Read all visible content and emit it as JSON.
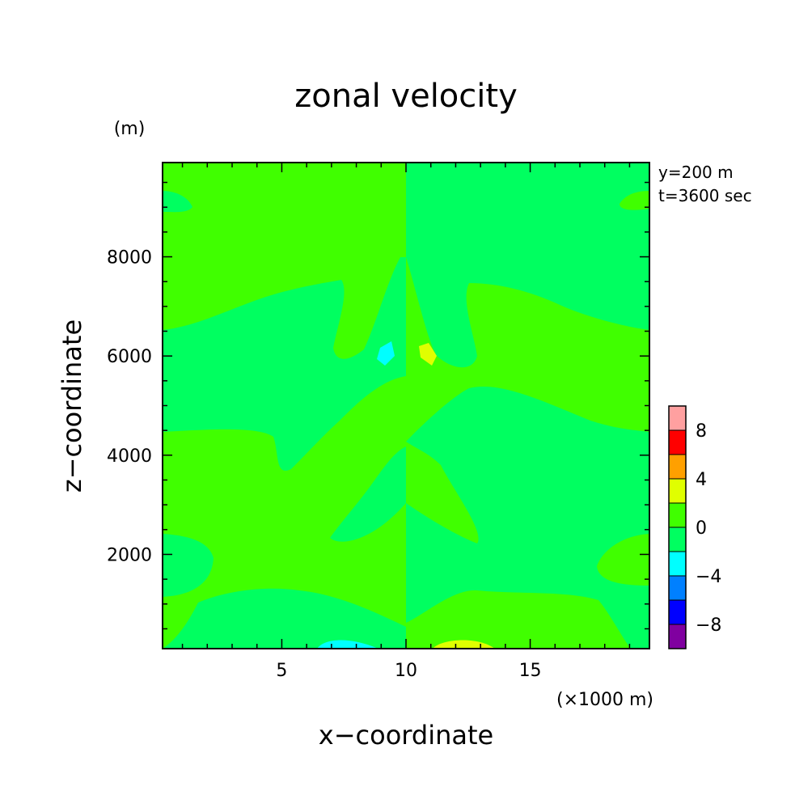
{
  "chart_data": {
    "type": "heatmap",
    "title": "zonal velocity",
    "xlabel": "x−coordinate",
    "ylabel": "z−coordinate",
    "x_unit": "(×1000 m)",
    "y_unit": "(m)",
    "annotations": [
      "y=200 m",
      "t=3600 sec"
    ],
    "xlim": [
      0.2,
      19.8
    ],
    "ylim": [
      100,
      9900
    ],
    "x_ticks": [
      5,
      10,
      15
    ],
    "y_ticks": [
      2000,
      4000,
      6000,
      8000
    ],
    "colorbar": {
      "levels": [
        -10,
        -8,
        -6,
        -4,
        -2,
        0,
        2,
        4,
        6,
        8,
        10
      ],
      "tick_labels": [
        "−8",
        "−4",
        "0",
        "4",
        "8"
      ],
      "tick_values": [
        -8,
        -4,
        0,
        4,
        8
      ],
      "colors": [
        "#8000a0",
        "#0000ff",
        "#0080ff",
        "#00ffff",
        "#00ff60",
        "#40ff00",
        "#e0ff00",
        "#ffa000",
        "#ff0000",
        "#ffa0a0"
      ]
    },
    "colors": {
      "background_band": "#40ff00",
      "band_0_to_neg2": "#00ff60",
      "band_neg4_to_neg2": "#00ffff",
      "band_2_to_4": "#e0ff00"
    }
  }
}
